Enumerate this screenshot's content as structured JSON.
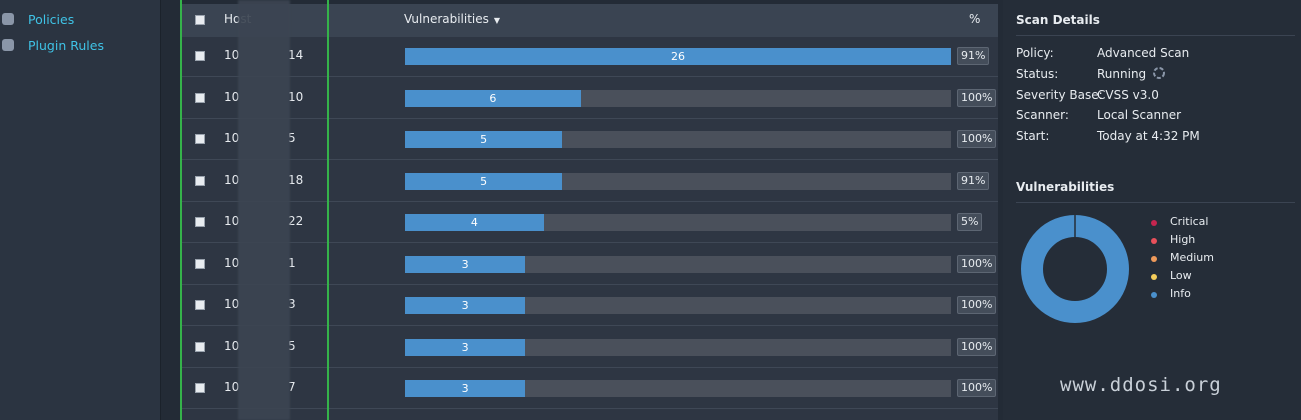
{
  "sidebar": {
    "items": [
      "Policies",
      "Plugin Rules"
    ]
  },
  "table": {
    "headers": {
      "host": "Host",
      "vulnerabilities": "Vulnerabilities",
      "percent": "%"
    },
    "rows": [
      {
        "host_start": "10",
        "host_end": "14",
        "count": 26,
        "percent": "91%"
      },
      {
        "host_start": "10",
        "host_end": "10",
        "count": 6,
        "percent": "100%"
      },
      {
        "host_start": "10",
        "host_end": "5",
        "count": 5,
        "percent": "100%"
      },
      {
        "host_start": "10",
        "host_end": "18",
        "count": 5,
        "percent": "91%"
      },
      {
        "host_start": "10",
        "host_end": "22",
        "count": 4,
        "percent": "5%"
      },
      {
        "host_start": "10",
        "host_end": "1",
        "count": 3,
        "percent": "100%"
      },
      {
        "host_start": "10",
        "host_end": "3",
        "count": 3,
        "percent": "100%"
      },
      {
        "host_start": "10",
        "host_end": "5",
        "count": 3,
        "percent": "100%"
      },
      {
        "host_start": "10",
        "host_end": "7",
        "count": 3,
        "percent": "100%"
      }
    ]
  },
  "scan_details": {
    "title": "Scan Details",
    "fields": [
      {
        "label": "Policy:",
        "value": "Advanced Scan"
      },
      {
        "label": "Status:",
        "value": "Running"
      },
      {
        "label": "Severity Base:",
        "value": "CVSS v3.0"
      },
      {
        "label": "Scanner:",
        "value": "Local Scanner"
      },
      {
        "label": "Start:",
        "value": "Today at 4:32 PM"
      }
    ]
  },
  "vulnerabilities": {
    "title": "Vulnerabilities",
    "legend": [
      {
        "name": "Critical",
        "color": "#c5254f"
      },
      {
        "name": "High",
        "color": "#e8505b"
      },
      {
        "name": "Medium",
        "color": "#ef9a5b"
      },
      {
        "name": "Low",
        "color": "#f4cd5b"
      },
      {
        "name": "Info",
        "color": "#4a90cc"
      }
    ]
  },
  "watermark": "www.ddosi.org"
}
